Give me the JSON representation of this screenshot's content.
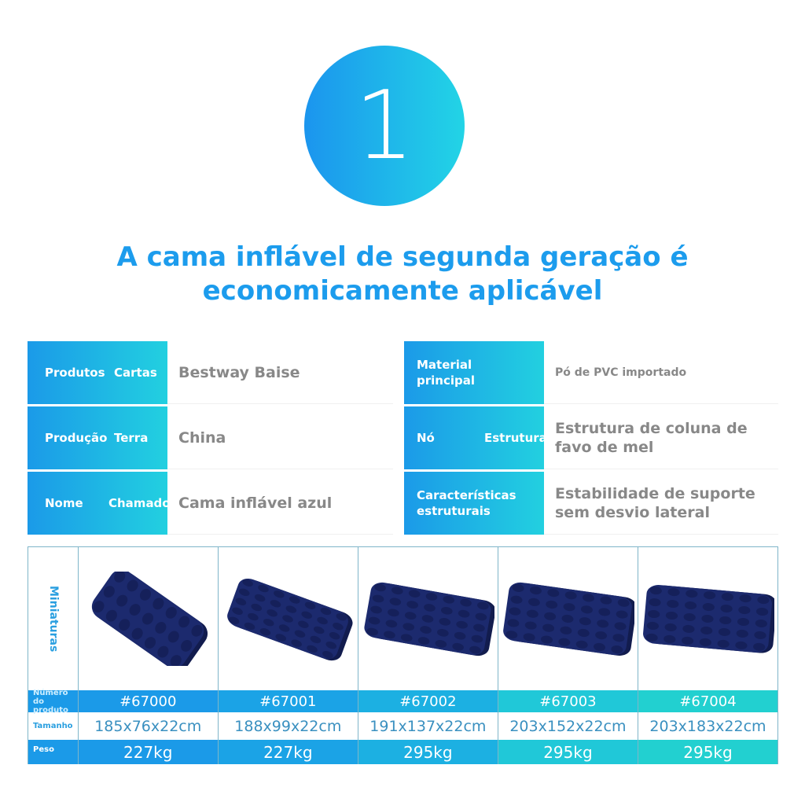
{
  "badge_number": "1",
  "title_line1": "A cama inflável de segunda geração é",
  "title_line2": "economicamente aplicável",
  "specs": [
    {
      "label_a": "Produtos",
      "label_b": "Cartas",
      "value": "Bestway Baise"
    },
    {
      "label_a": "Produção",
      "label_b": "Terra",
      "value": "China"
    },
    {
      "label_a": "Nome",
      "label_b": "Chamado",
      "value": "Cama inflável azul"
    },
    {
      "label_a": "Material principal",
      "label_b": "",
      "value": "Pó de PVC importado"
    },
    {
      "label_a": "Nó",
      "label_b": "Estrutura",
      "value": "Estrutura de coluna de favo de mel"
    },
    {
      "label_a": "Características estruturais",
      "label_b": "",
      "value": "Estabilidade de suporte sem desvio lateral"
    }
  ],
  "table": {
    "row_labels": {
      "thumbnails": "Miniaturas",
      "number": "Número do produto",
      "size": "Tamanho",
      "weight": "Peso"
    },
    "products": [
      {
        "number": "#67000",
        "size": "185x76x22cm",
        "weight": "227kg"
      },
      {
        "number": "#67001",
        "size": "188x99x22cm",
        "weight": "227kg"
      },
      {
        "number": "#67002",
        "size": "191x137x22cm",
        "weight": "295kg"
      },
      {
        "number": "#67003",
        "size": "203x152x22cm",
        "weight": "295kg"
      },
      {
        "number": "#67004",
        "size": "203x183x22cm",
        "weight": "295kg"
      }
    ]
  },
  "colors": {
    "blue": "#1b9ae8",
    "teal": "#22d0d0",
    "mattress": "#1c2a6e"
  }
}
